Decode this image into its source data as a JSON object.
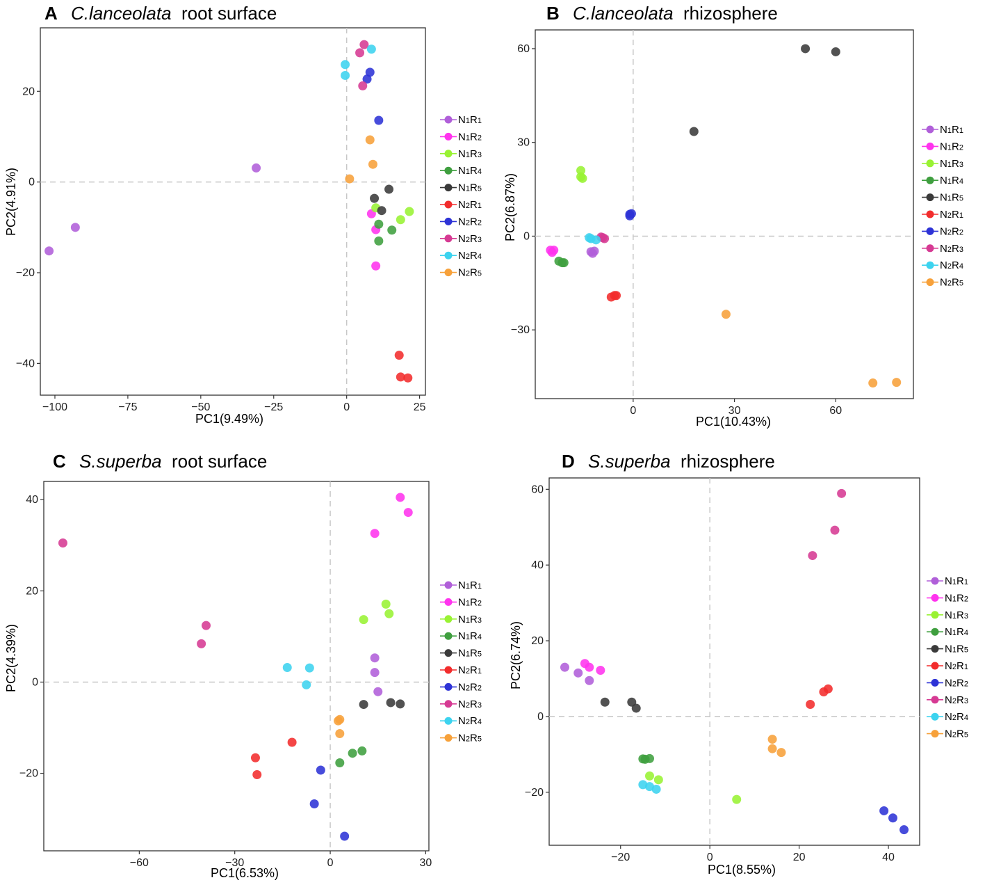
{
  "chart_data": [
    {
      "type": "scatter",
      "panel_letter": "A",
      "title_species": "C.lanceolata",
      "title_suffix": " root surface",
      "xlabel": "PC1(9.49%)",
      "ylabel": "PC2(4.91%)",
      "xlim": [
        -105,
        27
      ],
      "ylim": [
        -47,
        34
      ],
      "xticks": [
        -100,
        -75,
        -50,
        -25,
        0,
        25
      ],
      "yticks": [
        -40,
        -20,
        0,
        20
      ],
      "xtick_labels": [
        "−100",
        "−75",
        "−50",
        "−25",
        "0",
        "25"
      ],
      "ytick_labels": [
        "−40",
        "−20",
        "0",
        "20"
      ],
      "legend": [
        "N1R1",
        "N1R2",
        "N1R3",
        "N1R4",
        "N1R5",
        "N2R1",
        "N2R2",
        "N2R3",
        "N2R4",
        "N2R5"
      ],
      "series": [
        {
          "name": "N1R1",
          "points": [
            [
              -102,
              -15.2
            ],
            [
              -93,
              -10
            ],
            [
              -31,
              3.1
            ]
          ]
        },
        {
          "name": "N1R2",
          "points": [
            [
              8.5,
              -7
            ],
            [
              10,
              -10.5
            ],
            [
              10,
              -18.5
            ]
          ]
        },
        {
          "name": "N1R3",
          "points": [
            [
              10,
              -5.7
            ],
            [
              18.5,
              -8.3
            ],
            [
              21.5,
              -6.5
            ]
          ]
        },
        {
          "name": "N1R4",
          "points": [
            [
              11,
              -9.3
            ],
            [
              11,
              -13
            ],
            [
              15.5,
              -10.6
            ]
          ]
        },
        {
          "name": "N1R5",
          "points": [
            [
              9.5,
              -3.6
            ],
            [
              12,
              -6.3
            ],
            [
              14.5,
              -1.6
            ]
          ]
        },
        {
          "name": "N2R1",
          "points": [
            [
              18,
              -38.2
            ],
            [
              18.5,
              -43
            ],
            [
              21,
              -43.2
            ]
          ]
        },
        {
          "name": "N2R2",
          "points": [
            [
              7,
              22.7
            ],
            [
              8,
              24.2
            ],
            [
              11,
              13.6
            ]
          ]
        },
        {
          "name": "N2R3",
          "points": [
            [
              4.5,
              28.5
            ],
            [
              6,
              30.3
            ],
            [
              5.5,
              21.2
            ]
          ]
        },
        {
          "name": "N2R4",
          "points": [
            [
              -0.5,
              25.9
            ],
            [
              -0.5,
              23.5
            ],
            [
              8.5,
              29.3
            ]
          ]
        },
        {
          "name": "N2R5",
          "points": [
            [
              1,
              0.7
            ],
            [
              8,
              9.3
            ],
            [
              9,
              3.9
            ]
          ]
        }
      ]
    },
    {
      "type": "scatter",
      "panel_letter": "B",
      "title_species": "C.lanceolata",
      "title_suffix": " rhizosphere",
      "xlabel": "PC1(10.43%)",
      "ylabel": "PC2(6.87%)",
      "xlim": [
        -29,
        83
      ],
      "ylim": [
        -52,
        66
      ],
      "xticks": [
        0,
        30,
        60
      ],
      "yticks": [
        -30,
        0,
        30,
        60
      ],
      "xtick_labels": [
        "0",
        "30",
        "60"
      ],
      "ytick_labels": [
        "−30",
        "0",
        "30",
        "60"
      ],
      "legend": [
        "N1R1",
        "N1R2",
        "N1R3",
        "N1R4",
        "N1R5",
        "N2R1",
        "N2R2",
        "N2R3",
        "N2R4",
        "N2R5"
      ],
      "series": [
        {
          "name": "N1R1",
          "points": [
            [
              -12.5,
              -5
            ],
            [
              -12,
              -5.5
            ],
            [
              -11.5,
              -4.8
            ]
          ]
        },
        {
          "name": "N1R2",
          "points": [
            [
              -24.5,
              -4.5
            ],
            [
              -23.5,
              -4.5
            ],
            [
              -24,
              -5.2
            ]
          ]
        },
        {
          "name": "N1R3",
          "points": [
            [
              -15.5,
              21
            ],
            [
              -15.5,
              19
            ],
            [
              -15,
              18.5
            ]
          ]
        },
        {
          "name": "N1R4",
          "points": [
            [
              -22,
              -8
            ],
            [
              -21,
              -8.5
            ],
            [
              -20.5,
              -8.5
            ]
          ]
        },
        {
          "name": "N1R5",
          "points": [
            [
              18,
              33.5
            ],
            [
              51,
              60
            ],
            [
              60,
              59
            ]
          ]
        },
        {
          "name": "N2R1",
          "points": [
            [
              -6.5,
              -19.5
            ],
            [
              -5.5,
              -19
            ],
            [
              -5,
              -19
            ]
          ]
        },
        {
          "name": "N2R2",
          "points": [
            [
              -1,
              6.5
            ],
            [
              -0.5,
              7.2
            ],
            [
              -1,
              7
            ]
          ]
        },
        {
          "name": "N2R3",
          "points": [
            [
              -9.5,
              -0.3
            ],
            [
              -8.5,
              -0.8
            ],
            [
              -9,
              -0.5
            ]
          ]
        },
        {
          "name": "N2R4",
          "points": [
            [
              -13,
              -0.5
            ],
            [
              -11,
              -1.2
            ],
            [
              -12.5,
              -0.8
            ]
          ]
        },
        {
          "name": "N2R5",
          "points": [
            [
              27.5,
              -25
            ],
            [
              71,
              -47
            ],
            [
              78,
              -46.8
            ]
          ]
        }
      ]
    },
    {
      "type": "scatter",
      "panel_letter": "C",
      "title_species": "S.superba",
      "title_suffix": " root surface",
      "xlabel": "PC1(6.53%)",
      "ylabel": "PC2(4.39%)",
      "xlim": [
        -90,
        31
      ],
      "ylim": [
        -37,
        44
      ],
      "xticks": [
        -60,
        -30,
        0,
        30
      ],
      "yticks": [
        -20,
        0,
        20,
        40
      ],
      "xtick_labels": [
        "−60",
        "−30",
        "0",
        "30"
      ],
      "ytick_labels": [
        "−20",
        "0",
        "20",
        "40"
      ],
      "legend": [
        "N1R1",
        "N1R2",
        "N1R3",
        "N1R4",
        "N1R5",
        "N2R1",
        "N2R2",
        "N2R3",
        "N2R4",
        "N2R5"
      ],
      "series": [
        {
          "name": "N1R1",
          "points": [
            [
              14,
              5.3
            ],
            [
              14,
              2.1
            ],
            [
              15,
              -2.1
            ]
          ]
        },
        {
          "name": "N1R2",
          "points": [
            [
              14,
              32.6
            ],
            [
              22,
              40.5
            ],
            [
              24.5,
              37.2
            ]
          ]
        },
        {
          "name": "N1R3",
          "points": [
            [
              10.5,
              13.7
            ],
            [
              17.5,
              17.1
            ],
            [
              18.5,
              15
            ]
          ]
        },
        {
          "name": "N1R4",
          "points": [
            [
              3,
              -17.7
            ],
            [
              7,
              -15.6
            ],
            [
              10,
              -15.1
            ]
          ]
        },
        {
          "name": "N1R5",
          "points": [
            [
              10.5,
              -4.9
            ],
            [
              19,
              -4.5
            ],
            [
              22,
              -4.8
            ]
          ]
        },
        {
          "name": "N2R1",
          "points": [
            [
              -23.5,
              -16.6
            ],
            [
              -23,
              -20.3
            ],
            [
              -12,
              -13.2
            ]
          ]
        },
        {
          "name": "N2R2",
          "points": [
            [
              -3,
              -19.3
            ],
            [
              -5,
              -26.7
            ],
            [
              4.5,
              -33.8
            ]
          ]
        },
        {
          "name": "N2R3",
          "points": [
            [
              -84,
              30.5
            ],
            [
              -39,
              12.4
            ],
            [
              -40.5,
              8.4
            ]
          ]
        },
        {
          "name": "N2R4",
          "points": [
            [
              -13.5,
              3.2
            ],
            [
              -6.5,
              3.1
            ],
            [
              -7.5,
              -0.6
            ]
          ]
        },
        {
          "name": "N2R5",
          "points": [
            [
              2.5,
              -8.5
            ],
            [
              3,
              -8.2
            ],
            [
              3,
              -11.3
            ]
          ]
        }
      ]
    },
    {
      "type": "scatter",
      "panel_letter": "D",
      "title_species": "S.superba",
      "title_suffix": " rhizosphere",
      "xlabel": "PC1(8.55%)",
      "ylabel": "PC2(6.74%)",
      "xlim": [
        -36,
        47
      ],
      "ylim": [
        -34,
        63
      ],
      "xticks": [
        -20,
        0,
        20,
        40
      ],
      "yticks": [
        -20,
        0,
        20,
        40,
        60
      ],
      "xtick_labels": [
        "−20",
        "0",
        "20",
        "40"
      ],
      "ytick_labels": [
        "−20",
        "0",
        "20",
        "40",
        "60"
      ],
      "legend": [
        "N1R1",
        "N1R2",
        "N1R3",
        "N1R4",
        "N1R5",
        "N2R1",
        "N2R2",
        "N2R3",
        "N2R4",
        "N2R5"
      ],
      "series": [
        {
          "name": "N1R1",
          "points": [
            [
              -32.5,
              13
            ],
            [
              -29.5,
              11.5
            ],
            [
              -27,
              9.5
            ]
          ]
        },
        {
          "name": "N1R2",
          "points": [
            [
              -28,
              14
            ],
            [
              -27,
              13
            ],
            [
              -24.5,
              12.2
            ]
          ]
        },
        {
          "name": "N1R3",
          "points": [
            [
              -13.5,
              -15.7
            ],
            [
              -11.5,
              -16.7
            ],
            [
              6,
              -21.9
            ]
          ]
        },
        {
          "name": "N1R4",
          "points": [
            [
              -15,
              -11.2
            ],
            [
              -13.5,
              -11.1
            ],
            [
              -14.5,
              -11.3
            ]
          ]
        },
        {
          "name": "N1R5",
          "points": [
            [
              -23.5,
              3.8
            ],
            [
              -17.5,
              3.8
            ],
            [
              -16.5,
              2.2
            ]
          ]
        },
        {
          "name": "N2R1",
          "points": [
            [
              25.5,
              6.5
            ],
            [
              26.5,
              7.3
            ],
            [
              22.5,
              3.2
            ]
          ]
        },
        {
          "name": "N2R2",
          "points": [
            [
              39,
              -24.9
            ],
            [
              41,
              -26.8
            ],
            [
              43.5,
              -29.9
            ]
          ]
        },
        {
          "name": "N2R3",
          "points": [
            [
              23,
              42.5
            ],
            [
              28,
              49.2
            ],
            [
              29.5,
              58.9
            ]
          ]
        },
        {
          "name": "N2R4",
          "points": [
            [
              -15,
              -18
            ],
            [
              -13.5,
              -18.5
            ],
            [
              -12,
              -19.2
            ]
          ]
        },
        {
          "name": "N2R5",
          "points": [
            [
              14,
              -6
            ],
            [
              14,
              -8.5
            ],
            [
              16,
              -9.5
            ]
          ]
        }
      ]
    }
  ],
  "colors": {
    "N1R1": "#b05fd9",
    "N1R2": "#ff33ee",
    "N1R3": "#99f233",
    "N1R4": "#3f9f3f",
    "N1R5": "#3a3a3a",
    "N2R1": "#f22c2c",
    "N2R2": "#2e33d6",
    "N2R3": "#d63a93",
    "N2R4": "#3cd3ef",
    "N2R5": "#f7a13a"
  }
}
